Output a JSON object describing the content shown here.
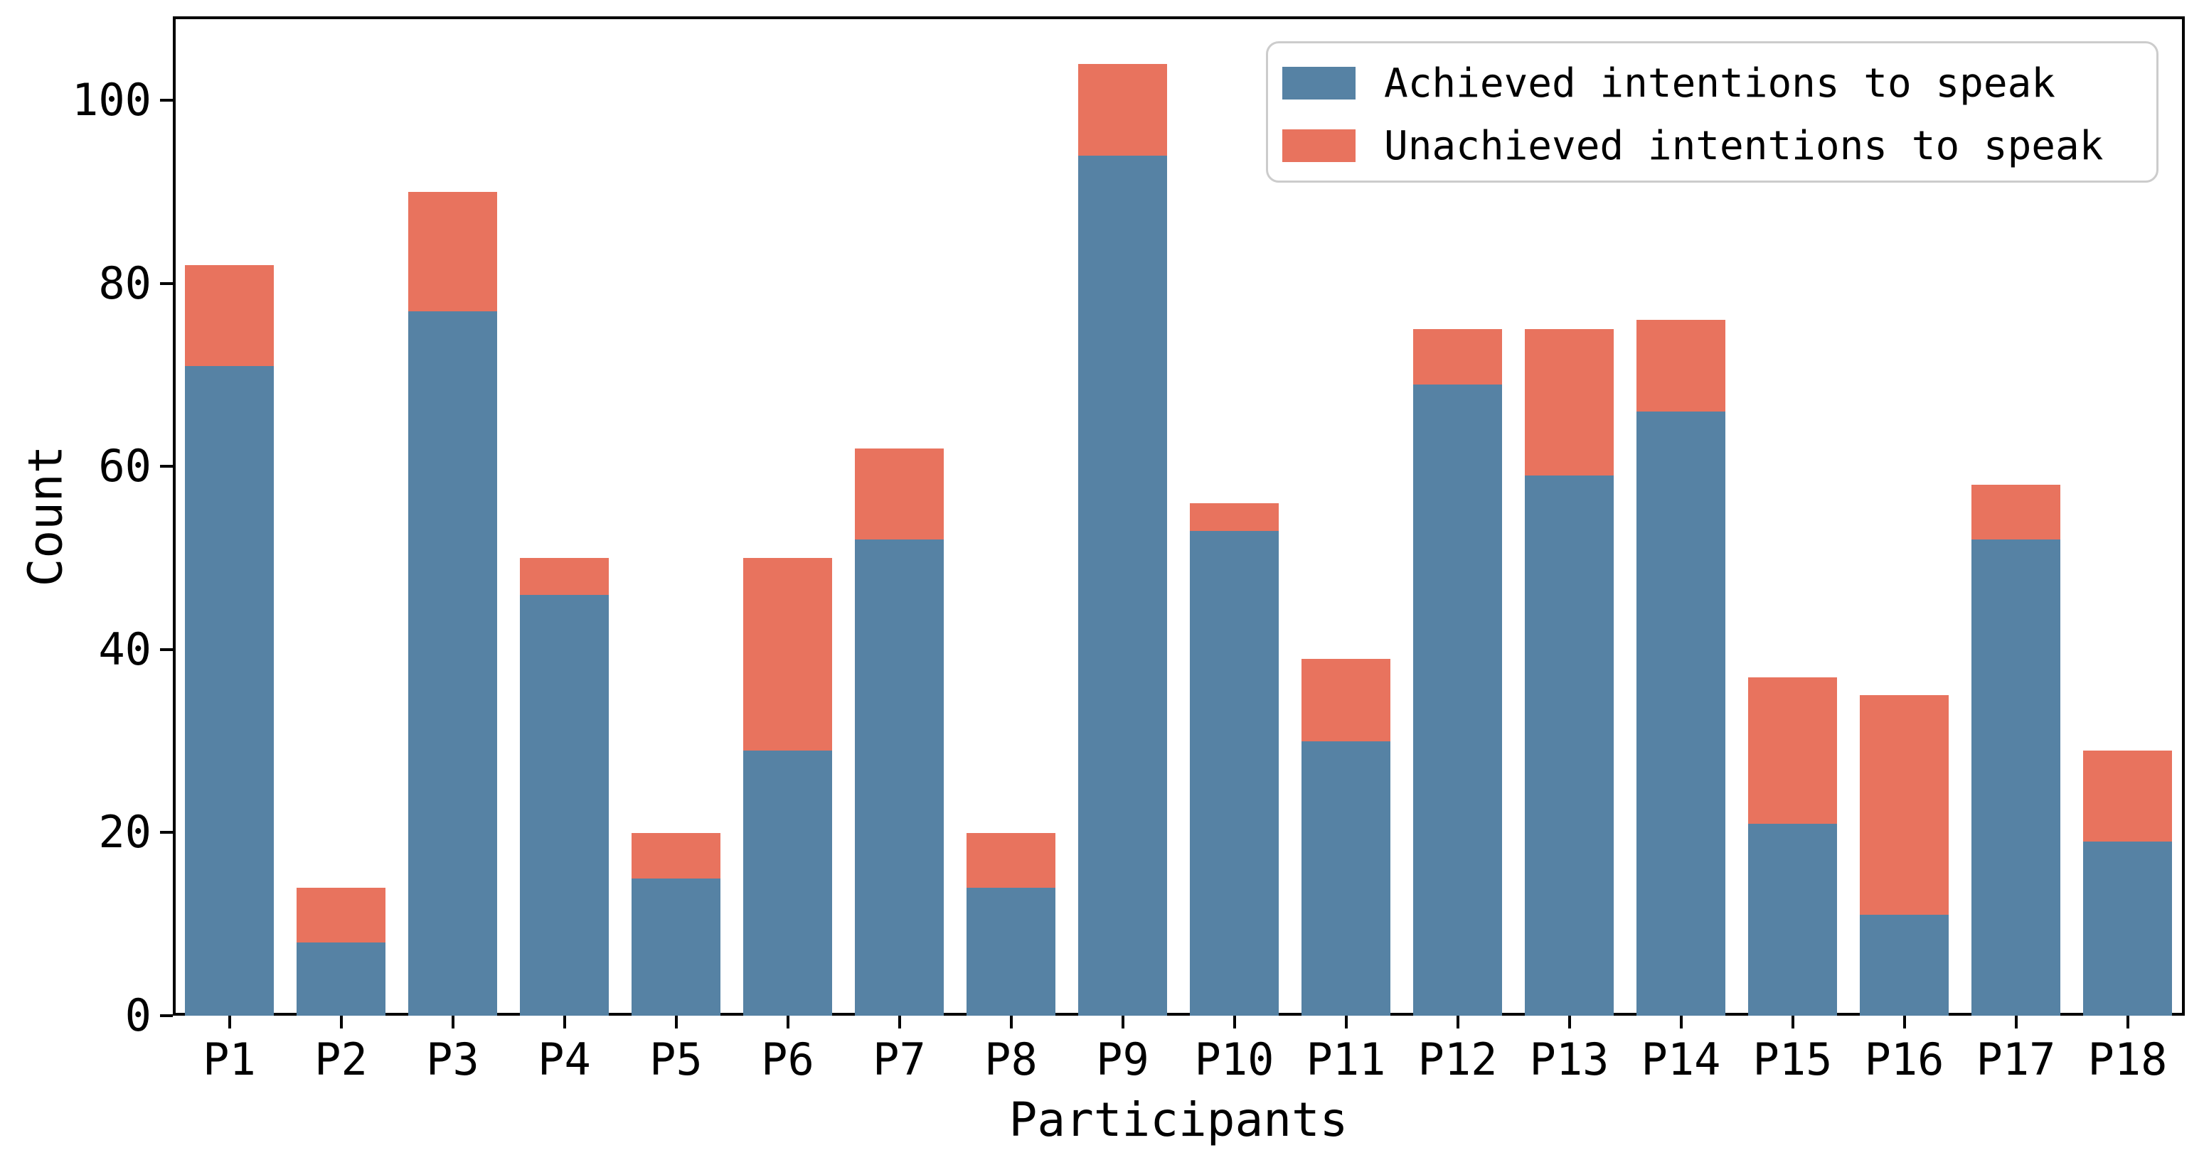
{
  "figure": {
    "background": "#ffffff",
    "text_color": "#000000"
  },
  "chart_data": {
    "type": "bar",
    "stacked": true,
    "title": "",
    "xlabel": "Participants",
    "ylabel": "Count",
    "categories": [
      "P1",
      "P2",
      "P3",
      "P4",
      "P5",
      "P6",
      "P7",
      "P8",
      "P9",
      "P10",
      "P11",
      "P12",
      "P13",
      "P14",
      "P15",
      "P16",
      "P17",
      "P18"
    ],
    "series": [
      {
        "name": "Achieved intentions to speak",
        "color": "#5682A4",
        "values": [
          71,
          8,
          77,
          46,
          15,
          29,
          52,
          14,
          94,
          53,
          30,
          69,
          59,
          66,
          21,
          11,
          52,
          19
        ]
      },
      {
        "name": "Unachieved intentions to speak",
        "color": "#E8735E",
        "values": [
          11,
          6,
          13,
          4,
          5,
          21,
          10,
          6,
          10,
          3,
          9,
          6,
          16,
          10,
          16,
          24,
          6,
          10
        ]
      }
    ],
    "totals": [
      82,
      14,
      90,
      50,
      20,
      50,
      62,
      20,
      104,
      56,
      39,
      75,
      75,
      76,
      37,
      35,
      58,
      29
    ],
    "yticks": [
      0,
      20,
      40,
      60,
      80,
      100
    ],
    "ylim": [
      0,
      109.2
    ],
    "grid": false,
    "legend_position": "upper right"
  }
}
